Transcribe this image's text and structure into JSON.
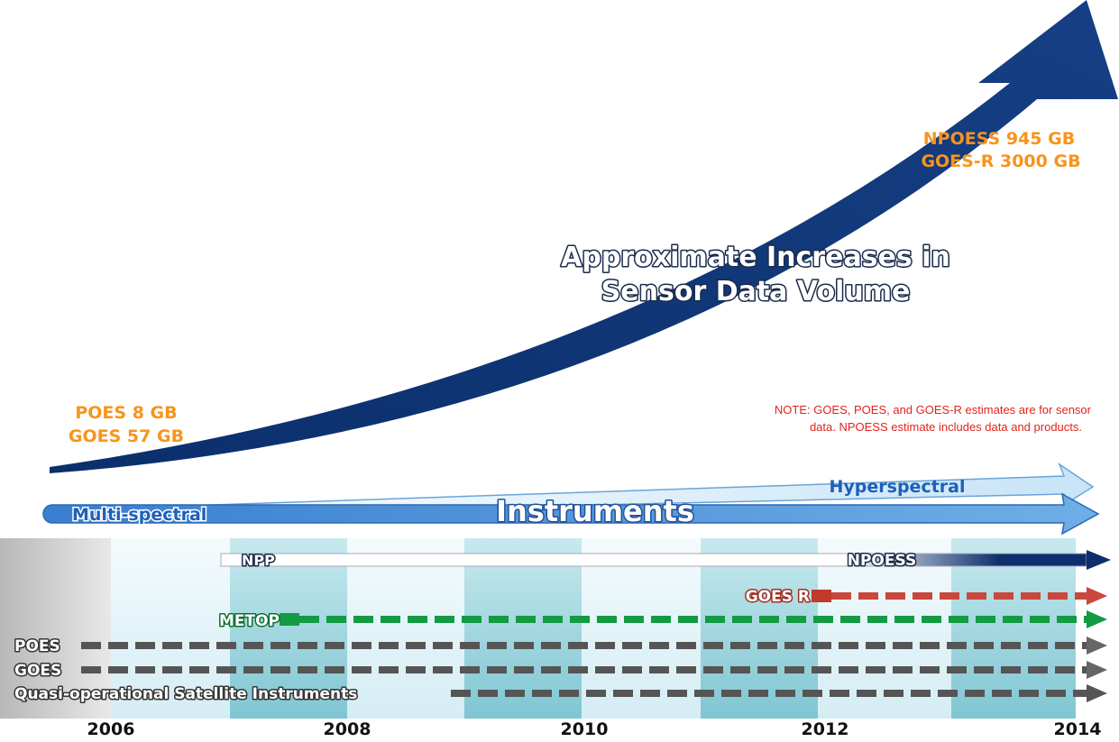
{
  "title": [
    "Approximate Increases in",
    "Sensor Data Volume"
  ],
  "high_volume": [
    "NPOESS 945 GB",
    "GOES-R 3000 GB"
  ],
  "low_volume": [
    "POES 8 GB",
    "GOES 57 GB"
  ],
  "note": [
    "NOTE: GOES, POES, and GOES-R estimates are for sensor",
    "data.  NPOESS estimate includes data and products."
  ],
  "instruments": {
    "start": "Multi-spectral",
    "label": "Instruments",
    "end": "Hyperspectral"
  },
  "timeline": {
    "rows": [
      "NPP",
      "NPOESS",
      "GOES R",
      "METOP",
      "POES",
      "GOES",
      "Quasi-operational Satellite Instruments"
    ],
    "years": [
      "2006",
      "2008",
      "2010",
      "2012",
      "2014"
    ]
  }
}
